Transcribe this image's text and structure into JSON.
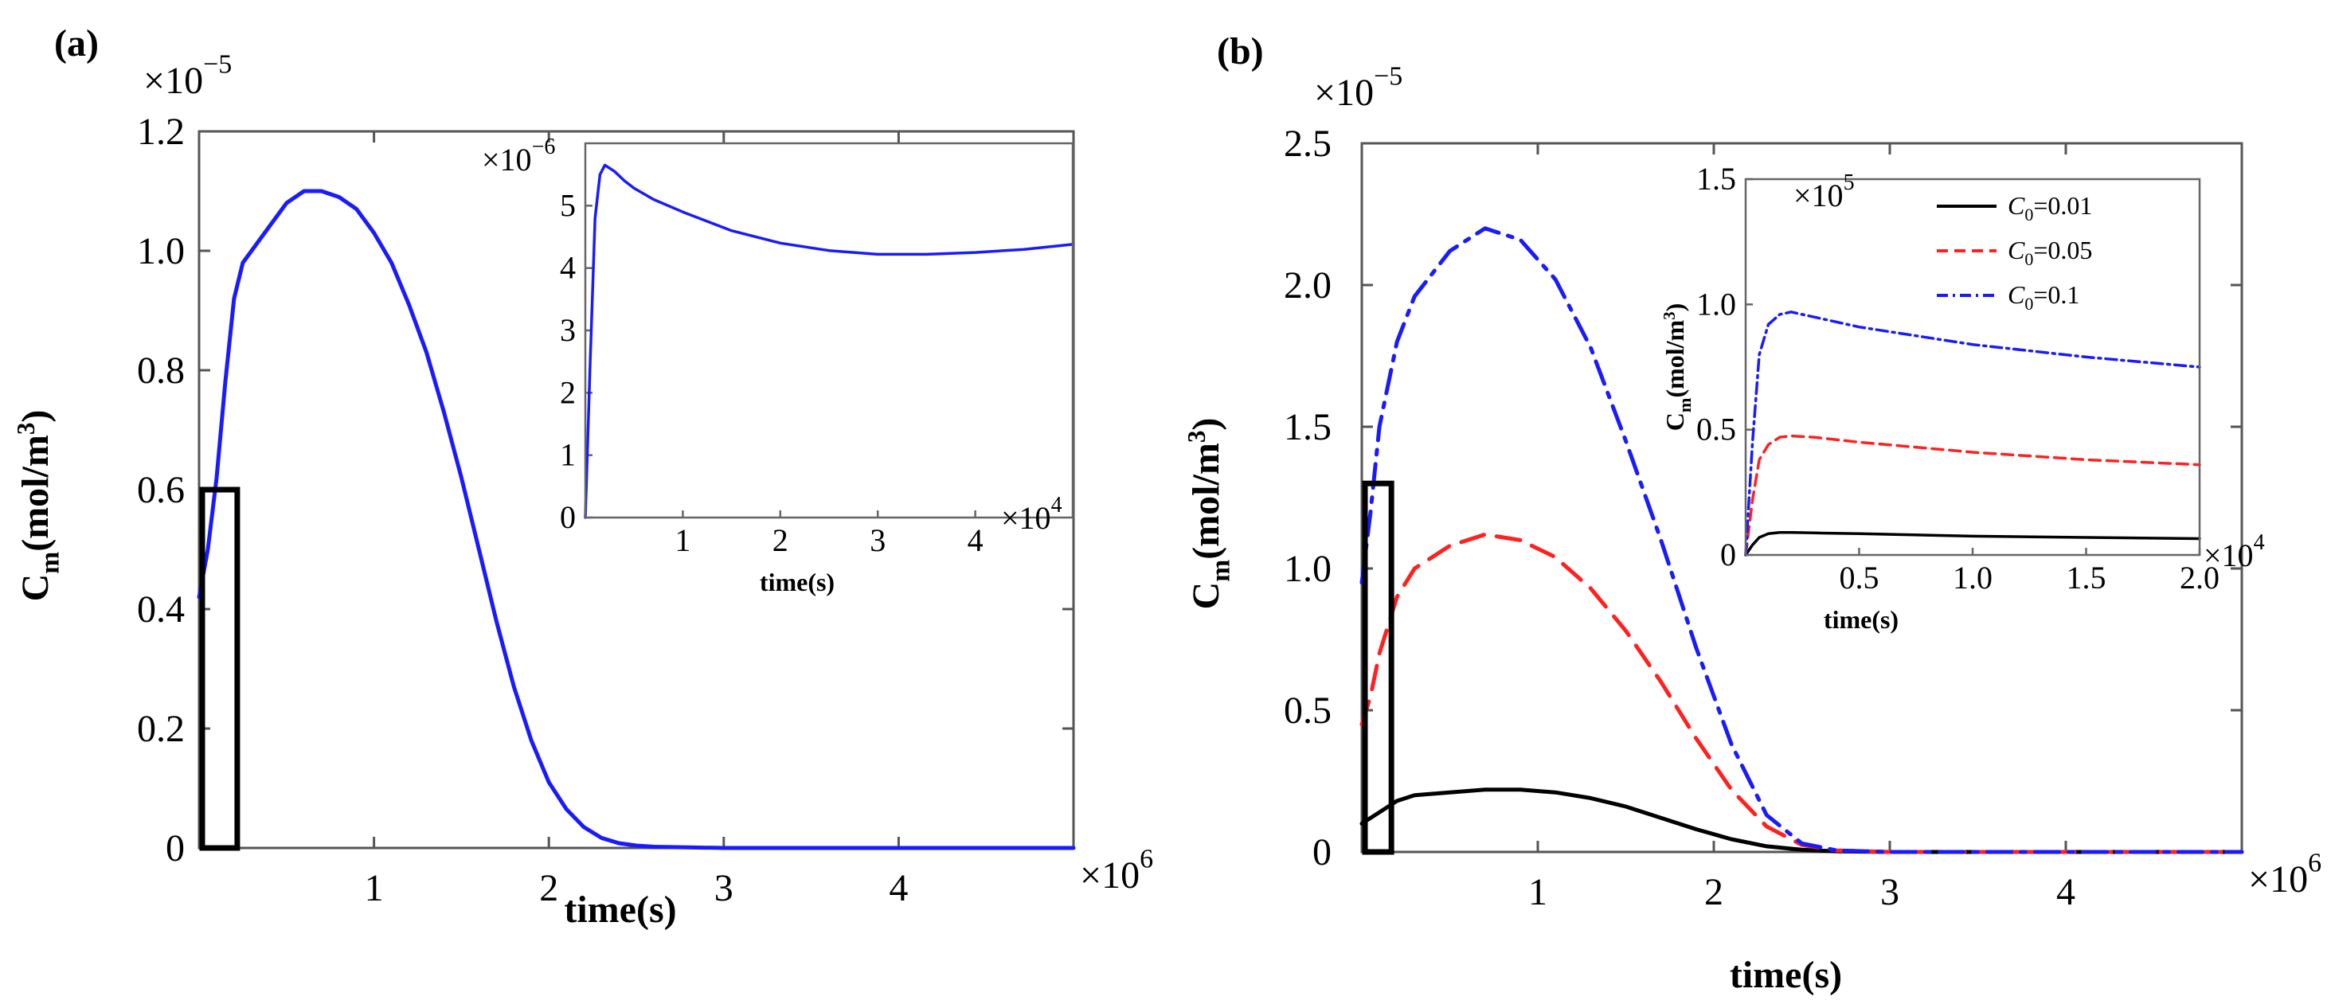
{
  "chart_data": [
    {
      "panel": "(a)",
      "type": "line",
      "title": "",
      "xlabel": "time(s)",
      "ylabel": "Cm(mol/m³)",
      "ylabel_main": "C",
      "ylabel_sub": "m",
      "ylabel_unit": "(mol/m",
      "ylabel_unit_sup": "3",
      "ylabel_close": ")",
      "x_multiplier": "×10⁶",
      "x_multiplier_base": "×10",
      "x_multiplier_exp": "6",
      "y_multiplier": "×10⁻⁵",
      "y_multiplier_base": "×10",
      "y_multiplier_exp": "−5",
      "xlim": [
        0,
        5.0
      ],
      "ylim": [
        0,
        1.2
      ],
      "xticks": [
        {
          "v": 1,
          "label": "1"
        },
        {
          "v": 2,
          "label": "2"
        },
        {
          "v": 3,
          "label": "3"
        },
        {
          "v": 4,
          "label": "4"
        }
      ],
      "yticks": [
        {
          "v": 0,
          "label": "0"
        },
        {
          "v": 0.2,
          "label": "0.2"
        },
        {
          "v": 0.4,
          "label": "0.4"
        },
        {
          "v": 0.6,
          "label": "0.6"
        },
        {
          "v": 0.8,
          "label": "0.8"
        },
        {
          "v": 1.0,
          "label": "1.0"
        },
        {
          "v": 1.2,
          "label": "1.2"
        }
      ],
      "highlight_box": {
        "x": [
          0,
          0.2
        ],
        "y": [
          0,
          0.6
        ]
      },
      "series": [
        {
          "name": "Cm",
          "color": "#1a1aff",
          "style": "solid",
          "x": [
            0,
            0.05,
            0.1,
            0.15,
            0.2,
            0.25,
            0.3,
            0.4,
            0.5,
            0.6,
            0.7,
            0.8,
            0.9,
            1.0,
            1.1,
            1.2,
            1.3,
            1.4,
            1.5,
            1.6,
            1.7,
            1.8,
            1.9,
            2.0,
            2.1,
            2.2,
            2.3,
            2.4,
            2.5,
            2.6,
            2.8,
            3.0,
            3.5,
            4.0,
            4.5,
            5.0
          ],
          "y": [
            0.42,
            0.5,
            0.62,
            0.78,
            0.92,
            0.98,
            1.0,
            1.04,
            1.08,
            1.1,
            1.1,
            1.09,
            1.07,
            1.03,
            0.98,
            0.91,
            0.83,
            0.73,
            0.62,
            0.5,
            0.38,
            0.27,
            0.18,
            0.11,
            0.065,
            0.035,
            0.017,
            0.008,
            0.004,
            0.002,
            0.001,
            0.0,
            0.0,
            0.0,
            0.0,
            0.0
          ]
        }
      ],
      "inset": {
        "type": "line",
        "xlabel": "time(s)",
        "x_multiplier": "×10⁴",
        "x_multiplier_base": "×10",
        "x_multiplier_exp": "4",
        "y_multiplier": "×10⁻⁶",
        "y_multiplier_base": "×10",
        "y_multiplier_exp": "−6",
        "xlim": [
          0,
          5.0
        ],
        "ylim": [
          0,
          6.0
        ],
        "xticks": [
          {
            "v": 1,
            "label": "1"
          },
          {
            "v": 2,
            "label": "2"
          },
          {
            "v": 3,
            "label": "3"
          },
          {
            "v": 4,
            "label": "4"
          }
        ],
        "yticks": [
          {
            "v": 0,
            "label": "0"
          },
          {
            "v": 1,
            "label": "1"
          },
          {
            "v": 2,
            "label": "2"
          },
          {
            "v": 3,
            "label": "3"
          },
          {
            "v": 4,
            "label": "4"
          },
          {
            "v": 5,
            "label": "5"
          }
        ],
        "series": [
          {
            "name": "Cm",
            "color": "#1a1aff",
            "style": "solid",
            "x": [
              0,
              0.05,
              0.1,
              0.15,
              0.2,
              0.25,
              0.3,
              0.4,
              0.5,
              0.7,
              1.0,
              1.5,
              2.0,
              2.5,
              3.0,
              3.5,
              4.0,
              4.5,
              5.0
            ],
            "y": [
              0,
              2.5,
              4.8,
              5.5,
              5.65,
              5.6,
              5.55,
              5.4,
              5.28,
              5.1,
              4.9,
              4.6,
              4.4,
              4.28,
              4.22,
              4.22,
              4.25,
              4.3,
              4.38
            ]
          }
        ]
      }
    },
    {
      "panel": "(b)",
      "type": "line",
      "title": "",
      "xlabel": "time(s)",
      "ylabel": "Cm(mol/m³)",
      "ylabel_main": "C",
      "ylabel_sub": "m",
      "ylabel_unit": "(mol/m",
      "ylabel_unit_sup": "3",
      "ylabel_close": ")",
      "x_multiplier": "×10⁶",
      "x_multiplier_base": "×10",
      "x_multiplier_exp": "6",
      "y_multiplier": "×10⁻⁵",
      "y_multiplier_base": "×10",
      "y_multiplier_exp": "−5",
      "xlim": [
        0,
        5.0
      ],
      "ylim": [
        0,
        2.5
      ],
      "xticks": [
        {
          "v": 1,
          "label": "1"
        },
        {
          "v": 2,
          "label": "2"
        },
        {
          "v": 3,
          "label": "3"
        },
        {
          "v": 4,
          "label": "4"
        }
      ],
      "yticks": [
        {
          "v": 0,
          "label": "0"
        },
        {
          "v": 0.5,
          "label": "0.5"
        },
        {
          "v": 1.0,
          "label": "1.0"
        },
        {
          "v": 1.5,
          "label": "1.5"
        },
        {
          "v": 2.0,
          "label": "2.0"
        },
        {
          "v": 2.5,
          "label": "2.5"
        }
      ],
      "highlight_box": {
        "x": [
          0,
          0.15
        ],
        "y": [
          0,
          1.3
        ]
      },
      "series": [
        {
          "name": "C0=0.01",
          "color": "#000000",
          "style": "solid",
          "x": [
            0,
            0.1,
            0.2,
            0.3,
            0.5,
            0.7,
            0.9,
            1.1,
            1.3,
            1.5,
            1.7,
            1.9,
            2.1,
            2.3,
            2.5,
            2.7,
            3.0,
            4.0,
            5.0
          ],
          "y": [
            0.1,
            0.14,
            0.18,
            0.2,
            0.21,
            0.22,
            0.22,
            0.21,
            0.19,
            0.16,
            0.12,
            0.08,
            0.045,
            0.02,
            0.008,
            0.002,
            0,
            0,
            0
          ]
        },
        {
          "name": "C0=0.05",
          "color": "#ff2020",
          "style": "dashed",
          "x": [
            0,
            0.05,
            0.1,
            0.2,
            0.3,
            0.5,
            0.7,
            0.9,
            1.1,
            1.3,
            1.5,
            1.7,
            1.9,
            2.1,
            2.3,
            2.5,
            2.7,
            3.0,
            4.0,
            5.0
          ],
          "y": [
            0.45,
            0.55,
            0.7,
            0.9,
            1.0,
            1.08,
            1.12,
            1.1,
            1.04,
            0.93,
            0.78,
            0.6,
            0.4,
            0.22,
            0.09,
            0.025,
            0.005,
            0,
            0,
            0
          ]
        },
        {
          "name": "C0=0.1",
          "color": "#1a1aff",
          "style": "dashdot",
          "x": [
            0,
            0.05,
            0.1,
            0.2,
            0.3,
            0.5,
            0.7,
            0.9,
            1.1,
            1.3,
            1.5,
            1.7,
            1.9,
            2.1,
            2.3,
            2.5,
            2.7,
            3.0,
            4.0,
            5.0
          ],
          "y": [
            0.95,
            1.2,
            1.5,
            1.8,
            1.96,
            2.12,
            2.2,
            2.16,
            2.02,
            1.78,
            1.45,
            1.1,
            0.72,
            0.38,
            0.13,
            0.03,
            0.005,
            0,
            0,
            0
          ]
        }
      ],
      "inset": {
        "type": "line",
        "xlabel": "time(s)",
        "ylabel": "Cm(mol/m³)",
        "ylabel_main": "C",
        "ylabel_sub": "m",
        "ylabel_unit": "(mol/m",
        "ylabel_unit_sup": "3",
        "ylabel_close": ")",
        "x_multiplier": "×10⁴",
        "x_multiplier_base": "×10",
        "x_multiplier_exp": "4",
        "y_multiplier": "×10⁵",
        "y_multiplier_base": "×10",
        "y_multiplier_exp": "5",
        "xlim": [
          0,
          2.0
        ],
        "ylim": [
          0,
          1.5
        ],
        "xticks": [
          {
            "v": 0.5,
            "label": "0.5"
          },
          {
            "v": 1.0,
            "label": "1.0"
          },
          {
            "v": 1.5,
            "label": "1.5"
          },
          {
            "v": 2.0,
            "label": "2.0"
          }
        ],
        "yticks": [
          {
            "v": 0,
            "label": "0"
          },
          {
            "v": 0.5,
            "label": "0.5"
          },
          {
            "v": 1.0,
            "label": "1.0"
          },
          {
            "v": 1.5,
            "label": "1.5"
          }
        ],
        "legend_position": "top-right",
        "legend": [
          {
            "symbol": "C",
            "subscript": "0",
            "value": "=0.01",
            "series": 0
          },
          {
            "symbol": "C",
            "subscript": "0",
            "value": "=0.05",
            "series": 1
          },
          {
            "symbol": "C",
            "subscript": "0",
            "value": "=0.1",
            "series": 2
          }
        ],
        "series": [
          {
            "name": "C0=0.01",
            "color": "#000000",
            "style": "solid",
            "x": [
              0,
              0.03,
              0.06,
              0.1,
              0.15,
              0.2,
              0.3,
              0.5,
              1.0,
              1.5,
              2.0
            ],
            "y": [
              0,
              0.04,
              0.07,
              0.085,
              0.09,
              0.09,
              0.088,
              0.085,
              0.075,
              0.07,
              0.065
            ]
          },
          {
            "name": "C0=0.05",
            "color": "#ff2020",
            "style": "dashed",
            "x": [
              0,
              0.03,
              0.06,
              0.1,
              0.15,
              0.2,
              0.3,
              0.5,
              1.0,
              1.5,
              2.0
            ],
            "y": [
              0,
              0.22,
              0.38,
              0.44,
              0.47,
              0.475,
              0.47,
              0.45,
              0.41,
              0.38,
              0.36
            ]
          },
          {
            "name": "C0=0.1",
            "color": "#1a1aff",
            "style": "dashdot",
            "x": [
              0,
              0.03,
              0.06,
              0.1,
              0.15,
              0.2,
              0.3,
              0.5,
              1.0,
              1.5,
              2.0
            ],
            "y": [
              0,
              0.45,
              0.8,
              0.92,
              0.96,
              0.97,
              0.95,
              0.91,
              0.84,
              0.79,
              0.75
            ]
          }
        ]
      }
    }
  ]
}
